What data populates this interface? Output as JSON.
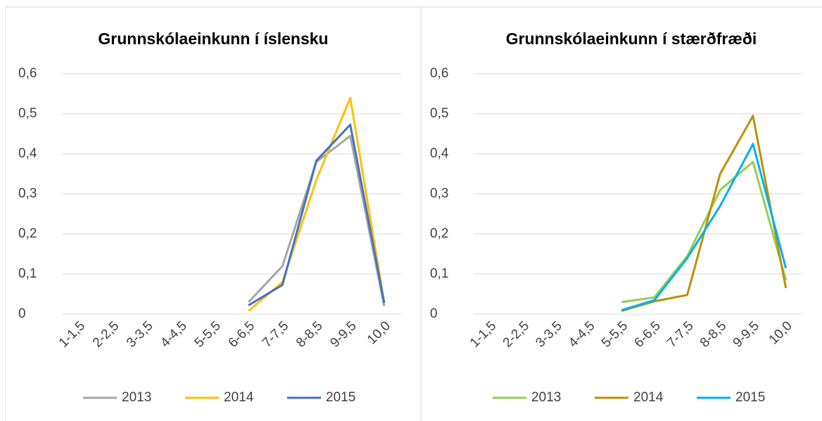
{
  "chart_data": [
    {
      "type": "line",
      "title": "Grunnskólaeinkunn í íslensku",
      "categories": [
        "1-1,5",
        "2-2,5",
        "3-3,5",
        "4-4,5",
        "5-5,5",
        "6-6,5",
        "7-7,5",
        "8-8,5",
        "9-9,5",
        "10,0"
      ],
      "series": [
        {
          "name": "2013",
          "color": "#a5a5a5",
          "values": [
            null,
            null,
            null,
            null,
            null,
            0.03,
            0.12,
            0.38,
            0.445,
            0.02
          ]
        },
        {
          "name": "2014",
          "color": "#ffc000",
          "values": [
            null,
            null,
            null,
            null,
            null,
            0.008,
            0.08,
            0.335,
            0.54,
            0.03
          ]
        },
        {
          "name": "2015",
          "color": "#4472c4",
          "values": [
            null,
            null,
            null,
            null,
            null,
            0.022,
            0.073,
            0.383,
            0.473,
            0.028
          ]
        }
      ],
      "ylim": [
        0,
        0.6
      ],
      "yticks": [
        0,
        {
          "value": 0.1,
          "label": "0,1"
        },
        {
          "value": 0.2,
          "label": "0,2"
        },
        {
          "value": 0.3,
          "label": "0,3"
        },
        {
          "value": 0.4,
          "label": "0,4"
        },
        {
          "value": 0.5,
          "label": "0,5"
        },
        {
          "value": 0.6,
          "label": "0,6"
        }
      ],
      "grid": true,
      "legend": "bottom"
    },
    {
      "type": "line",
      "title": "Grunnskólaeinkunn í stærðfræði",
      "categories": [
        "1-1,5",
        "2-2,5",
        "3-3,5",
        "4-4,5",
        "5-5,5",
        "6-6,5",
        "7-7,5",
        "8-8,5",
        "9-9,5",
        "10,0"
      ],
      "series": [
        {
          "name": "2013",
          "color": "#92d050",
          "values": [
            null,
            null,
            null,
            null,
            0.03,
            0.042,
            0.145,
            0.31,
            0.38,
            0.085
          ]
        },
        {
          "name": "2014",
          "color": "#bf9000",
          "values": [
            null,
            null,
            null,
            null,
            0.008,
            0.032,
            0.048,
            0.35,
            0.495,
            0.065
          ]
        },
        {
          "name": "2015",
          "color": "#00b0f0",
          "values": [
            null,
            null,
            null,
            null,
            0.01,
            0.035,
            0.14,
            0.27,
            0.425,
            0.115
          ]
        }
      ],
      "ylim": [
        0,
        0.6
      ],
      "yticks": [
        0,
        {
          "value": 0.1,
          "label": "0,1"
        },
        {
          "value": 0.2,
          "label": "0,2"
        },
        {
          "value": 0.3,
          "label": "0,3"
        },
        {
          "value": 0.4,
          "label": "0,4"
        },
        {
          "value": 0.5,
          "label": "0,5"
        },
        {
          "value": 0.6,
          "label": "0,6"
        }
      ],
      "grid": true,
      "legend": "bottom"
    }
  ]
}
